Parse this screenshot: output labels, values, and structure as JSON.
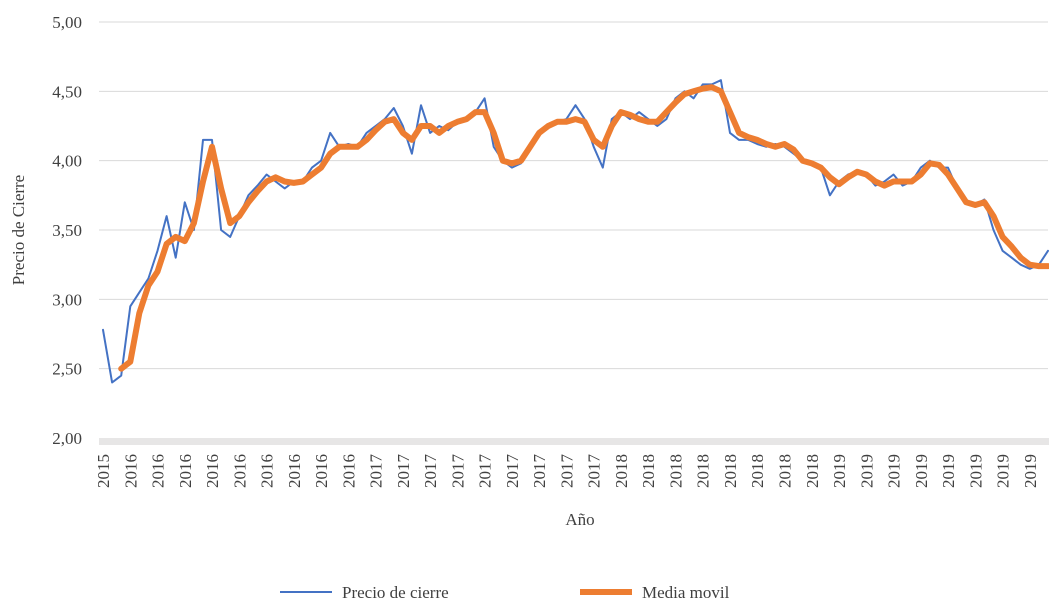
{
  "chart_data": {
    "type": "line",
    "x_label": "Año",
    "y_label": "Precio de Cierre",
    "categories": [
      "2015",
      null,
      null,
      "2016",
      null,
      null,
      "2016",
      null,
      null,
      "2016",
      null,
      null,
      "2016",
      null,
      null,
      "2016",
      null,
      null,
      "2016",
      null,
      null,
      "2016",
      null,
      null,
      "2016",
      null,
      null,
      "2016",
      null,
      null,
      "2017",
      null,
      null,
      "2017",
      null,
      null,
      "2017",
      null,
      null,
      "2017",
      null,
      null,
      "2017",
      null,
      null,
      "2017",
      null,
      null,
      "2017",
      null,
      null,
      "2017",
      null,
      null,
      "2017",
      null,
      null,
      "2018",
      null,
      null,
      "2018",
      null,
      null,
      "2018",
      null,
      null,
      "2018",
      null,
      null,
      "2018",
      null,
      null,
      "2018",
      null,
      null,
      "2018",
      null,
      null,
      "2018",
      null,
      null,
      "2019",
      null,
      null,
      "2019",
      null,
      null,
      "2019",
      null,
      null,
      "2019",
      null,
      null,
      "2019",
      null,
      null,
      "2019",
      null,
      null,
      "2019",
      null,
      null,
      "2019",
      null,
      null
    ],
    "series": [
      {
        "name": "Precio de cierre",
        "color": "#4472c4",
        "width": 2,
        "values": [
          2.78,
          2.4,
          2.45,
          2.95,
          3.05,
          3.15,
          3.35,
          3.6,
          3.3,
          3.7,
          3.5,
          4.15,
          4.15,
          3.5,
          3.45,
          3.6,
          3.75,
          3.82,
          3.9,
          3.85,
          3.8,
          3.85,
          3.85,
          3.95,
          4.0,
          4.2,
          4.1,
          4.12,
          4.1,
          4.2,
          4.25,
          4.3,
          4.38,
          4.25,
          4.05,
          4.4,
          4.2,
          4.25,
          4.22,
          4.28,
          4.3,
          4.35,
          4.45,
          4.1,
          4.0,
          3.95,
          3.98,
          4.1,
          4.2,
          4.25,
          4.28,
          4.3,
          4.4,
          4.3,
          4.1,
          3.95,
          4.3,
          4.35,
          4.3,
          4.35,
          4.3,
          4.25,
          4.3,
          4.45,
          4.5,
          4.45,
          4.55,
          4.55,
          4.58,
          4.2,
          4.15,
          4.15,
          4.12,
          4.1,
          4.12,
          4.1,
          4.05,
          4.0,
          3.98,
          3.95,
          3.75,
          3.85,
          3.9,
          3.92,
          3.9,
          3.82,
          3.85,
          3.9,
          3.82,
          3.85,
          3.95,
          4.0,
          3.95,
          3.95,
          3.8,
          3.7,
          3.68,
          3.72,
          3.5,
          3.35,
          3.3,
          3.25,
          3.22,
          3.25,
          3.35
        ]
      },
      {
        "name": "Media movil",
        "color": "#ed7d31",
        "width": 6,
        "values": [
          null,
          null,
          2.5,
          2.55,
          2.9,
          3.1,
          3.2,
          3.4,
          3.45,
          3.42,
          3.55,
          3.85,
          4.1,
          3.8,
          3.55,
          3.6,
          3.7,
          3.78,
          3.85,
          3.88,
          3.85,
          3.84,
          3.85,
          3.9,
          3.95,
          4.05,
          4.1,
          4.1,
          4.1,
          4.15,
          4.22,
          4.28,
          4.3,
          4.2,
          4.15,
          4.25,
          4.25,
          4.2,
          4.25,
          4.28,
          4.3,
          4.35,
          4.35,
          4.2,
          4.0,
          3.98,
          4.0,
          4.1,
          4.2,
          4.25,
          4.28,
          4.28,
          4.3,
          4.28,
          4.15,
          4.1,
          4.25,
          4.35,
          4.33,
          4.3,
          4.28,
          4.28,
          4.35,
          4.42,
          4.48,
          4.5,
          4.52,
          4.53,
          4.5,
          4.35,
          4.2,
          4.17,
          4.15,
          4.12,
          4.1,
          4.12,
          4.08,
          4.0,
          3.98,
          3.95,
          3.88,
          3.83,
          3.88,
          3.92,
          3.9,
          3.85,
          3.82,
          3.85,
          3.85,
          3.85,
          3.9,
          3.98,
          3.97,
          3.9,
          3.8,
          3.7,
          3.68,
          3.7,
          3.6,
          3.45,
          3.38,
          3.3,
          3.25,
          3.24,
          3.24
        ]
      }
    ],
    "ylim": [
      2,
      5
    ],
    "yticks": [
      {
        "value": 2,
        "label": "2,00"
      },
      {
        "value": 2.5,
        "label": "2,50"
      },
      {
        "value": 3,
        "label": "3,00"
      },
      {
        "value": 3.5,
        "label": "3,50"
      },
      {
        "value": 4,
        "label": "4,00"
      },
      {
        "value": 4.5,
        "label": "4,50"
      },
      {
        "value": 5,
        "label": "5,00"
      }
    ],
    "grid": true,
    "legend": "bottom"
  }
}
